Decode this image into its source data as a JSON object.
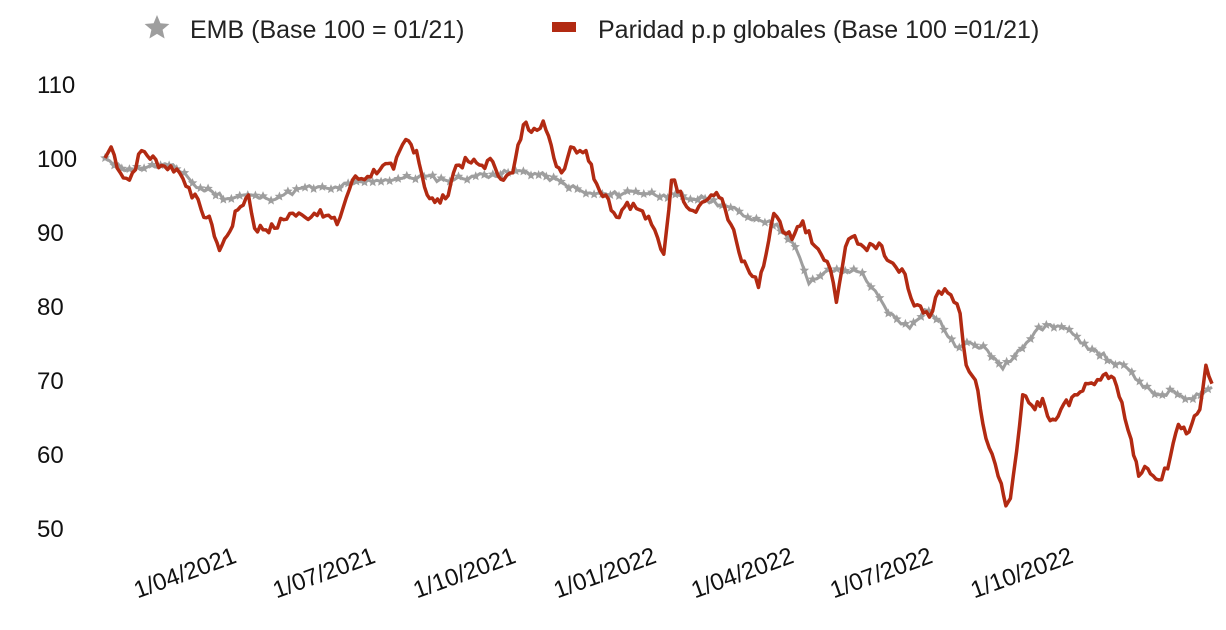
{
  "chart_data": {
    "type": "line",
    "legend": {
      "placement": "top-center",
      "items": [
        {
          "label": "EMB (Base 100 = 01/21)",
          "marker": "star",
          "color": "#9e9e9e"
        },
        {
          "label": "Paridad p.p globales (Base 100 =01/21)",
          "marker": "line",
          "color": "#b22a12"
        }
      ]
    },
    "x_range": [
      "2021-01-04",
      "2022-12-30"
    ],
    "x_ticks": [
      {
        "label": "1/04/2021",
        "date": "2021-04-01"
      },
      {
        "label": "1/07/2021",
        "date": "2021-07-01"
      },
      {
        "label": "1/10/2021",
        "date": "2021-10-01"
      },
      {
        "label": "1/01/2022",
        "date": "2022-01-01"
      },
      {
        "label": "1/04/2022",
        "date": "2022-04-01"
      },
      {
        "label": "1/07/2022",
        "date": "2022-07-01"
      },
      {
        "label": "1/10/2022",
        "date": "2022-10-01"
      }
    ],
    "y_ticks": [
      "50",
      "60",
      "70",
      "80",
      "90",
      "100",
      "110"
    ],
    "ylim": [
      50,
      110
    ],
    "grid": false,
    "series": [
      {
        "name": "EMB (Base 100 = 01/21)",
        "color": "#9e9e9e",
        "marker": "star",
        "points": [
          [
            "2021-01-04",
            100
          ],
          [
            "2021-01-10",
            99
          ],
          [
            "2021-01-20",
            98.5
          ],
          [
            "2021-02-01",
            98.8
          ],
          [
            "2021-02-15",
            99
          ],
          [
            "2021-02-25",
            98
          ],
          [
            "2021-03-05",
            96
          ],
          [
            "2021-03-15",
            95.5
          ],
          [
            "2021-03-25",
            94.5
          ],
          [
            "2021-04-05",
            95
          ],
          [
            "2021-04-20",
            94.5
          ],
          [
            "2021-05-01",
            95
          ],
          [
            "2021-05-15",
            96
          ],
          [
            "2021-06-01",
            95.8
          ],
          [
            "2021-06-15",
            96.5
          ],
          [
            "2021-07-01",
            97
          ],
          [
            "2021-07-15",
            97.2
          ],
          [
            "2021-08-01",
            97.5
          ],
          [
            "2021-08-15",
            97
          ],
          [
            "2021-09-01",
            97.5
          ],
          [
            "2021-09-15",
            97.8
          ],
          [
            "2021-09-25",
            98
          ],
          [
            "2021-10-05",
            98.2
          ],
          [
            "2021-10-20",
            97.5
          ],
          [
            "2021-11-01",
            96.5
          ],
          [
            "2021-11-15",
            95.2
          ],
          [
            "2021-12-01",
            95
          ],
          [
            "2021-12-15",
            95.5
          ],
          [
            "2022-01-05",
            95
          ],
          [
            "2022-01-20",
            94.5
          ],
          [
            "2022-02-01",
            94.5
          ],
          [
            "2022-02-15",
            93.5
          ],
          [
            "2022-03-01",
            92
          ],
          [
            "2022-03-15",
            91.5
          ],
          [
            "2022-03-25",
            90
          ],
          [
            "2022-04-01",
            88
          ],
          [
            "2022-04-10",
            83
          ],
          [
            "2022-04-20",
            84.5
          ],
          [
            "2022-05-01",
            85
          ],
          [
            "2022-05-15",
            84.5
          ],
          [
            "2022-06-01",
            79
          ],
          [
            "2022-06-15",
            77
          ],
          [
            "2022-06-25",
            79.5
          ],
          [
            "2022-07-05",
            78
          ],
          [
            "2022-07-15",
            74.5
          ],
          [
            "2022-07-25",
            75
          ],
          [
            "2022-08-05",
            74
          ],
          [
            "2022-08-15",
            71.5
          ],
          [
            "2022-08-25",
            74
          ],
          [
            "2022-09-05",
            76.5
          ],
          [
            "2022-09-15",
            77.5
          ],
          [
            "2022-09-25",
            77
          ],
          [
            "2022-10-05",
            75
          ],
          [
            "2022-10-15",
            74
          ],
          [
            "2022-10-25",
            72.5
          ],
          [
            "2022-11-05",
            71.5
          ],
          [
            "2022-11-15",
            69
          ],
          [
            "2022-11-25",
            68
          ],
          [
            "2022-12-05",
            68.5
          ],
          [
            "2022-12-15",
            67.5
          ],
          [
            "2022-12-30",
            69
          ]
        ]
      },
      {
        "name": "Paridad p.p globales (Base 100 =01/21)",
        "color": "#b22a12",
        "marker": "line",
        "points": [
          [
            "2021-01-04",
            100
          ],
          [
            "2021-01-08",
            101.5
          ],
          [
            "2021-01-14",
            98
          ],
          [
            "2021-01-20",
            97
          ],
          [
            "2021-01-28",
            101
          ],
          [
            "2021-02-10",
            99
          ],
          [
            "2021-02-20",
            98.5
          ],
          [
            "2021-02-28",
            96
          ],
          [
            "2021-03-08",
            93
          ],
          [
            "2021-03-15",
            91
          ],
          [
            "2021-03-20",
            87.5
          ],
          [
            "2021-03-25",
            89.5
          ],
          [
            "2021-04-01",
            93
          ],
          [
            "2021-04-08",
            95
          ],
          [
            "2021-04-12",
            90.5
          ],
          [
            "2021-04-25",
            90.5
          ],
          [
            "2021-05-05",
            92.5
          ],
          [
            "2021-05-15",
            92
          ],
          [
            "2021-05-25",
            93
          ],
          [
            "2021-06-05",
            91
          ],
          [
            "2021-06-15",
            97
          ],
          [
            "2021-06-25",
            97.5
          ],
          [
            "2021-07-05",
            99
          ],
          [
            "2021-07-12",
            98.5
          ],
          [
            "2021-07-20",
            102.5
          ],
          [
            "2021-07-27",
            101
          ],
          [
            "2021-08-03",
            95
          ],
          [
            "2021-08-08",
            94
          ],
          [
            "2021-08-15",
            94.5
          ],
          [
            "2021-08-22",
            99
          ],
          [
            "2021-08-30",
            99.5
          ],
          [
            "2021-09-08",
            99
          ],
          [
            "2021-09-15",
            99.5
          ],
          [
            "2021-09-22",
            97
          ],
          [
            "2021-09-28",
            98
          ],
          [
            "2021-10-05",
            104.5
          ],
          [
            "2021-10-12",
            104
          ],
          [
            "2021-10-18",
            105
          ],
          [
            "2021-10-25",
            100
          ],
          [
            "2021-10-30",
            98
          ],
          [
            "2021-11-05",
            101.5
          ],
          [
            "2021-11-15",
            101
          ],
          [
            "2021-11-22",
            96.5
          ],
          [
            "2021-11-28",
            95
          ],
          [
            "2021-12-05",
            92
          ],
          [
            "2021-12-12",
            94
          ],
          [
            "2021-12-20",
            93
          ],
          [
            "2021-12-28",
            91
          ],
          [
            "2022-01-05",
            87
          ],
          [
            "2022-01-10",
            97
          ],
          [
            "2022-01-16",
            95.5
          ],
          [
            "2022-01-22",
            93
          ],
          [
            "2022-01-28",
            93.5
          ],
          [
            "2022-02-05",
            95
          ],
          [
            "2022-02-12",
            94.5
          ],
          [
            "2022-02-18",
            91
          ],
          [
            "2022-02-25",
            86
          ],
          [
            "2022-03-04",
            84
          ],
          [
            "2022-03-08",
            82.5
          ],
          [
            "2022-03-13",
            87
          ],
          [
            "2022-03-18",
            92.5
          ],
          [
            "2022-03-24",
            90
          ],
          [
            "2022-03-30",
            89
          ],
          [
            "2022-04-06",
            91.5
          ],
          [
            "2022-04-12",
            88.5
          ],
          [
            "2022-04-18",
            87
          ],
          [
            "2022-04-24",
            85
          ],
          [
            "2022-04-28",
            80.5
          ],
          [
            "2022-05-04",
            88
          ],
          [
            "2022-05-10",
            89.5
          ],
          [
            "2022-05-18",
            87.5
          ],
          [
            "2022-05-26",
            88.5
          ],
          [
            "2022-06-02",
            86
          ],
          [
            "2022-06-10",
            85
          ],
          [
            "2022-06-16",
            81
          ],
          [
            "2022-06-22",
            80
          ],
          [
            "2022-06-28",
            78.5
          ],
          [
            "2022-07-04",
            82
          ],
          [
            "2022-07-12",
            81.5
          ],
          [
            "2022-07-18",
            79
          ],
          [
            "2022-07-22",
            72
          ],
          [
            "2022-07-28",
            70
          ],
          [
            "2022-08-02",
            64
          ],
          [
            "2022-08-08",
            60
          ],
          [
            "2022-08-14",
            56
          ],
          [
            "2022-08-17",
            53
          ],
          [
            "2022-08-20",
            54
          ],
          [
            "2022-08-28",
            68
          ],
          [
            "2022-09-05",
            66
          ],
          [
            "2022-09-10",
            67.5
          ],
          [
            "2022-09-15",
            64.5
          ],
          [
            "2022-09-22",
            66
          ],
          [
            "2022-10-01",
            68
          ],
          [
            "2022-10-10",
            69.5
          ],
          [
            "2022-10-18",
            70
          ],
          [
            "2022-10-25",
            70.5
          ],
          [
            "2022-11-01",
            67
          ],
          [
            "2022-11-07",
            62
          ],
          [
            "2022-11-12",
            57
          ],
          [
            "2022-11-18",
            58
          ],
          [
            "2022-11-25",
            56.5
          ],
          [
            "2022-12-01",
            58
          ],
          [
            "2022-12-08",
            64
          ],
          [
            "2022-12-15",
            63
          ],
          [
            "2022-12-22",
            66
          ],
          [
            "2022-12-26",
            72
          ],
          [
            "2022-12-30",
            69.5
          ]
        ]
      }
    ]
  }
}
